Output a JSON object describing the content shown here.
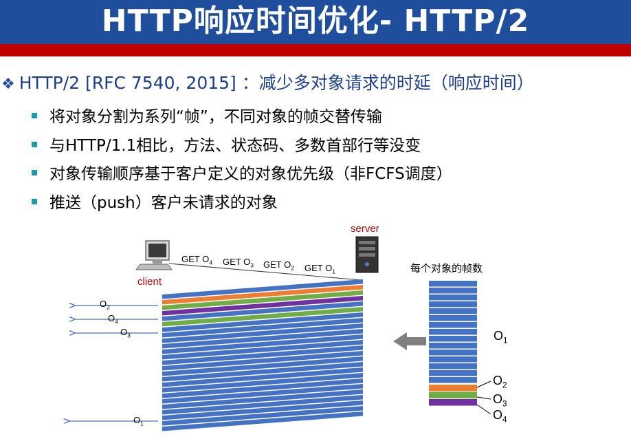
{
  "title": "HTTP响应时间优化- HTTP/2",
  "main_point": {
    "prefix": "HTTP/2 [RFC 7540, 2015] ：",
    "text": "减少多对象请求的时延（响应时间）"
  },
  "sub_points": [
    "将对象分割为系列“帧”，不同对象的帧交替传输",
    "与HTTP/1.1相比，方法、状态码、多数首部行等没变",
    "对象传输顺序基于客户定义的对象优先级（非FCFS调度）",
    "推送（push）客户未请求的对象"
  ],
  "diagram": {
    "server_label": "server",
    "client_label": "client",
    "requests": [
      {
        "text": "GET O",
        "sub": "4"
      },
      {
        "text": "GET O",
        "sub": "3"
      },
      {
        "text": "GET O",
        "sub": "2"
      },
      {
        "text": "GET O",
        "sub": "1"
      }
    ],
    "arrivals": [
      {
        "text": "O",
        "sub": "2"
      },
      {
        "text": "O",
        "sub": "4"
      },
      {
        "text": "O",
        "sub": "3"
      },
      {
        "text": "O",
        "sub": "1"
      }
    ],
    "frames_label": "每个对象的帧数",
    "objects": [
      {
        "text": "O",
        "sub": "1"
      },
      {
        "text": "O",
        "sub": "2"
      },
      {
        "text": "O",
        "sub": "3"
      },
      {
        "text": "O",
        "sub": "4"
      }
    ],
    "colors": {
      "blue": "#4472c4",
      "orange": "#ed7d31",
      "green": "#70ad47",
      "purple": "#7030a0",
      "arrow": "#808080"
    }
  }
}
